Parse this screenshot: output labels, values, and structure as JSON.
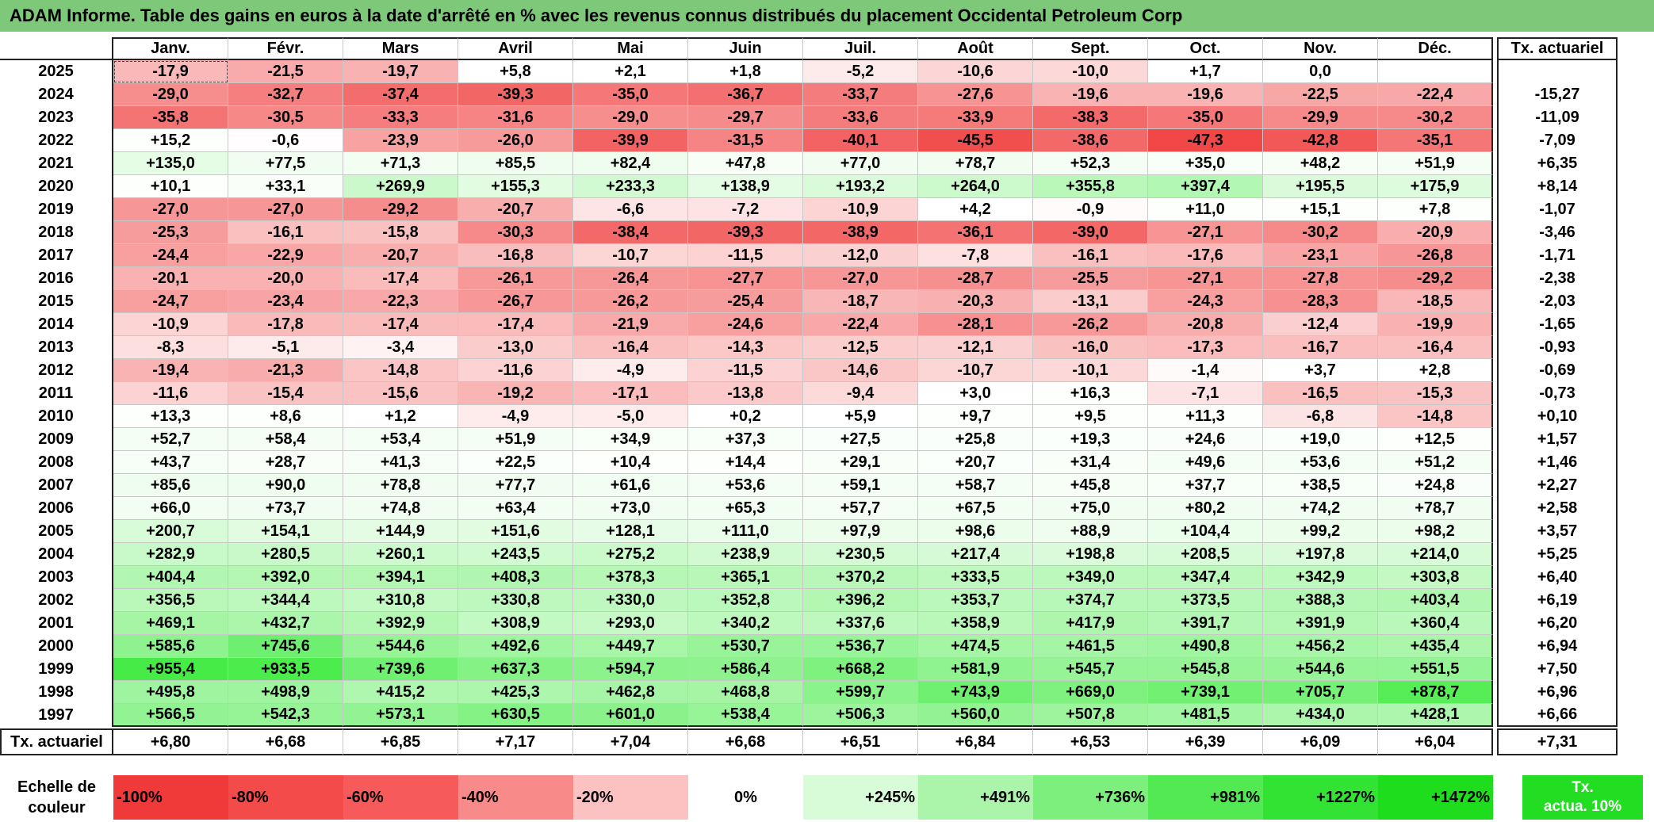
{
  "title": "ADAM Informe. Table des gains en euros à la date d'arrêté en % avec les revenus connus distribués du placement Occidental Petroleum Corp",
  "months": [
    "Janv.",
    "Févr.",
    "Mars",
    "Avril",
    "Mai",
    "Juin",
    "Juil.",
    "Août",
    "Sept.",
    "Oct.",
    "Nov.",
    "Déc."
  ],
  "rate_header": "Tx. actuariel",
  "rows": [
    {
      "year": "2025",
      "values": [
        "-17,9",
        "-21,5",
        "-19,7",
        "+5,8",
        "+2,1",
        "+1,8",
        "-5,2",
        "-10,6",
        "-10,0",
        "+1,7",
        "0,0",
        ""
      ],
      "rate": ""
    },
    {
      "year": "2024",
      "values": [
        "-29,0",
        "-32,7",
        "-37,4",
        "-39,3",
        "-35,0",
        "-36,7",
        "-33,7",
        "-27,6",
        "-19,6",
        "-19,6",
        "-22,5",
        "-22,4"
      ],
      "rate": "-15,27"
    },
    {
      "year": "2023",
      "values": [
        "-35,8",
        "-30,5",
        "-33,3",
        "-31,6",
        "-29,0",
        "-29,7",
        "-33,6",
        "-33,9",
        "-38,3",
        "-35,0",
        "-29,9",
        "-30,2"
      ],
      "rate": "-11,09"
    },
    {
      "year": "2022",
      "values": [
        "+15,2",
        "-0,6",
        "-23,9",
        "-26,0",
        "-39,9",
        "-31,5",
        "-40,1",
        "-45,5",
        "-38,6",
        "-47,3",
        "-42,8",
        "-35,1"
      ],
      "rate": "-7,09"
    },
    {
      "year": "2021",
      "values": [
        "+135,0",
        "+77,5",
        "+71,3",
        "+85,5",
        "+82,4",
        "+47,8",
        "+77,0",
        "+78,7",
        "+52,3",
        "+35,0",
        "+48,2",
        "+51,9"
      ],
      "rate": "+6,35"
    },
    {
      "year": "2020",
      "values": [
        "+10,1",
        "+33,1",
        "+269,9",
        "+155,3",
        "+233,3",
        "+138,9",
        "+193,2",
        "+264,0",
        "+355,8",
        "+397,4",
        "+195,5",
        "+175,9"
      ],
      "rate": "+8,14"
    },
    {
      "year": "2019",
      "values": [
        "-27,0",
        "-27,0",
        "-29,2",
        "-20,7",
        "-6,6",
        "-7,2",
        "-10,9",
        "+4,2",
        "-0,9",
        "+11,0",
        "+15,1",
        "+7,8"
      ],
      "rate": "-1,07"
    },
    {
      "year": "2018",
      "values": [
        "-25,3",
        "-16,1",
        "-15,8",
        "-30,3",
        "-38,4",
        "-39,3",
        "-38,9",
        "-36,1",
        "-39,0",
        "-27,1",
        "-30,2",
        "-20,9"
      ],
      "rate": "-3,46"
    },
    {
      "year": "2017",
      "values": [
        "-24,4",
        "-22,9",
        "-20,7",
        "-16,8",
        "-10,7",
        "-11,5",
        "-12,0",
        "-7,8",
        "-16,1",
        "-17,6",
        "-23,1",
        "-26,8"
      ],
      "rate": "-1,71"
    },
    {
      "year": "2016",
      "values": [
        "-20,1",
        "-20,0",
        "-17,4",
        "-26,1",
        "-26,4",
        "-27,7",
        "-27,0",
        "-28,7",
        "-25,5",
        "-27,1",
        "-27,8",
        "-29,2"
      ],
      "rate": "-2,38"
    },
    {
      "year": "2015",
      "values": [
        "-24,7",
        "-23,4",
        "-22,3",
        "-26,7",
        "-26,2",
        "-25,4",
        "-18,7",
        "-20,3",
        "-13,1",
        "-24,3",
        "-28,3",
        "-18,5"
      ],
      "rate": "-2,03"
    },
    {
      "year": "2014",
      "values": [
        "-10,9",
        "-17,8",
        "-17,4",
        "-17,4",
        "-21,9",
        "-24,6",
        "-22,4",
        "-28,1",
        "-26,2",
        "-20,8",
        "-12,4",
        "-19,9"
      ],
      "rate": "-1,65"
    },
    {
      "year": "2013",
      "values": [
        "-8,3",
        "-5,1",
        "-3,4",
        "-13,0",
        "-16,4",
        "-14,3",
        "-12,5",
        "-12,1",
        "-16,0",
        "-17,3",
        "-16,7",
        "-16,4"
      ],
      "rate": "-0,93"
    },
    {
      "year": "2012",
      "values": [
        "-19,4",
        "-21,3",
        "-14,8",
        "-11,6",
        "-4,9",
        "-11,5",
        "-14,6",
        "-10,7",
        "-10,1",
        "-1,4",
        "+3,7",
        "+2,8"
      ],
      "rate": "-0,69"
    },
    {
      "year": "2011",
      "values": [
        "-11,6",
        "-15,4",
        "-15,6",
        "-19,2",
        "-17,1",
        "-13,8",
        "-9,4",
        "+3,0",
        "+16,3",
        "-7,1",
        "-16,5",
        "-15,3"
      ],
      "rate": "-0,73"
    },
    {
      "year": "2010",
      "values": [
        "+13,3",
        "+8,6",
        "+1,2",
        "-4,9",
        "-5,0",
        "+0,2",
        "+5,9",
        "+9,7",
        "+9,5",
        "+11,3",
        "-6,8",
        "-14,8"
      ],
      "rate": "+0,10"
    },
    {
      "year": "2009",
      "values": [
        "+52,7",
        "+58,4",
        "+53,4",
        "+51,9",
        "+34,9",
        "+37,3",
        "+27,5",
        "+25,8",
        "+19,3",
        "+24,6",
        "+19,0",
        "+12,5"
      ],
      "rate": "+1,57"
    },
    {
      "year": "2008",
      "values": [
        "+43,7",
        "+28,7",
        "+41,3",
        "+22,5",
        "+10,4",
        "+14,4",
        "+29,1",
        "+20,7",
        "+31,4",
        "+49,6",
        "+53,6",
        "+51,2"
      ],
      "rate": "+1,46"
    },
    {
      "year": "2007",
      "values": [
        "+85,6",
        "+90,0",
        "+78,8",
        "+77,7",
        "+61,6",
        "+53,6",
        "+59,1",
        "+58,7",
        "+45,8",
        "+37,7",
        "+38,5",
        "+24,8"
      ],
      "rate": "+2,27"
    },
    {
      "year": "2006",
      "values": [
        "+66,0",
        "+73,7",
        "+74,8",
        "+63,4",
        "+73,0",
        "+65,3",
        "+57,7",
        "+67,5",
        "+75,0",
        "+80,2",
        "+74,2",
        "+78,7"
      ],
      "rate": "+2,58"
    },
    {
      "year": "2005",
      "values": [
        "+200,7",
        "+154,1",
        "+144,9",
        "+151,6",
        "+128,1",
        "+111,0",
        "+97,9",
        "+98,6",
        "+88,9",
        "+104,4",
        "+99,2",
        "+98,2"
      ],
      "rate": "+3,57"
    },
    {
      "year": "2004",
      "values": [
        "+282,9",
        "+280,5",
        "+260,1",
        "+243,5",
        "+275,2",
        "+238,9",
        "+230,5",
        "+217,4",
        "+198,8",
        "+208,5",
        "+197,8",
        "+214,0"
      ],
      "rate": "+5,25"
    },
    {
      "year": "2003",
      "values": [
        "+404,4",
        "+392,0",
        "+394,1",
        "+408,3",
        "+378,3",
        "+365,1",
        "+370,2",
        "+333,5",
        "+349,0",
        "+347,4",
        "+342,9",
        "+303,8"
      ],
      "rate": "+6,40"
    },
    {
      "year": "2002",
      "values": [
        "+356,5",
        "+344,4",
        "+310,8",
        "+330,8",
        "+330,0",
        "+352,8",
        "+396,2",
        "+353,7",
        "+374,7",
        "+373,5",
        "+388,3",
        "+403,4"
      ],
      "rate": "+6,19"
    },
    {
      "year": "2001",
      "values": [
        "+469,1",
        "+432,7",
        "+392,9",
        "+308,9",
        "+293,0",
        "+340,2",
        "+337,6",
        "+358,9",
        "+417,9",
        "+391,7",
        "+391,9",
        "+360,4"
      ],
      "rate": "+6,20"
    },
    {
      "year": "2000",
      "values": [
        "+585,6",
        "+745,6",
        "+544,6",
        "+492,6",
        "+449,7",
        "+530,7",
        "+536,7",
        "+474,5",
        "+461,5",
        "+490,8",
        "+456,2",
        "+435,4"
      ],
      "rate": "+6,94"
    },
    {
      "year": "1999",
      "values": [
        "+955,4",
        "+933,5",
        "+739,6",
        "+637,3",
        "+594,7",
        "+586,4",
        "+668,2",
        "+581,9",
        "+545,7",
        "+545,8",
        "+544,6",
        "+551,5"
      ],
      "rate": "+7,50"
    },
    {
      "year": "1998",
      "values": [
        "+495,8",
        "+498,9",
        "+415,2",
        "+425,3",
        "+462,8",
        "+468,8",
        "+599,7",
        "+743,9",
        "+669,0",
        "+739,1",
        "+705,7",
        "+878,7"
      ],
      "rate": "+6,96"
    },
    {
      "year": "1997",
      "values": [
        "+566,5",
        "+542,3",
        "+573,1",
        "+630,5",
        "+601,0",
        "+538,4",
        "+506,3",
        "+560,0",
        "+507,8",
        "+481,5",
        "+434,0",
        "+428,1"
      ],
      "rate": "+6,66"
    }
  ],
  "footer": {
    "label": "Tx. actuariel",
    "values": [
      "+6,80",
      "+6,68",
      "+6,85",
      "+7,17",
      "+7,04",
      "+6,68",
      "+6,51",
      "+6,84",
      "+6,53",
      "+6,39",
      "+6,09",
      "+6,04"
    ],
    "rate": "+7,31"
  },
  "scale": {
    "label_line1": "Echelle de",
    "label_line2": "couleur",
    "steps": [
      {
        "label": "-100%",
        "color": "#f03a3a"
      },
      {
        "label": "-80%",
        "color": "#f34a4a"
      },
      {
        "label": "-60%",
        "color": "#f65a5a"
      },
      {
        "label": "-40%",
        "color": "#f98a8a"
      },
      {
        "label": "-20%",
        "color": "#fcc2c2"
      },
      {
        "label": "0%",
        "color": "#ffffff"
      },
      {
        "label": "+245%",
        "color": "#d8fbd8"
      },
      {
        "label": "+491%",
        "color": "#aaf5aa"
      },
      {
        "label": "+736%",
        "color": "#7cef7c"
      },
      {
        "label": "+981%",
        "color": "#52e952"
      },
      {
        "label": "+1227%",
        "color": "#33e333"
      },
      {
        "label": "+1472%",
        "color": "#1ddd1d"
      }
    ],
    "actua_line1": "Tx.",
    "actua_line2": "actua. 10%",
    "actua_color": "#22dd22"
  },
  "colors": {
    "title_bg": "#7ec87a",
    "neg_max": "#f03a3a",
    "pos_max": "#1ddd1d"
  }
}
